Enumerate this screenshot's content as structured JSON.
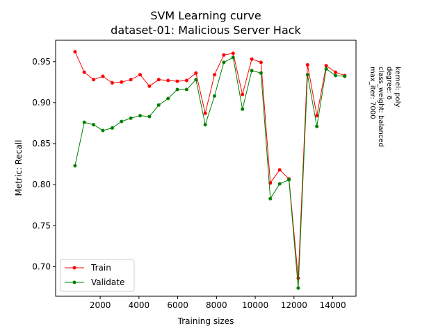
{
  "chart_data": {
    "type": "line",
    "title": "SVM Learning curve",
    "subtitle": "dataset-01: Malicious Server Hack",
    "xlabel": "Training sizes",
    "ylabel": "Metric: Recall",
    "xlim": [
      -300,
      15200
    ],
    "ylim": [
      0.664,
      0.976
    ],
    "xticks": [
      2000,
      4000,
      6000,
      8000,
      10000,
      12000,
      14000
    ],
    "xtick_labels": [
      "2000",
      "4000",
      "6000",
      "8000",
      "10000",
      "12000",
      "14000"
    ],
    "yticks": [
      0.7,
      0.75,
      0.8,
      0.85,
      0.9,
      0.95
    ],
    "ytick_labels": [
      "0.70",
      "0.75",
      "0.80",
      "0.85",
      "0.90",
      "0.95"
    ],
    "grid": false,
    "legend_position": "lower-left",
    "x": [
      700,
      1180,
      1660,
      2140,
      2620,
      3100,
      3580,
      4060,
      4540,
      5020,
      5500,
      5980,
      6460,
      6940,
      7420,
      7900,
      8380,
      8860,
      9340,
      9820,
      10300,
      10780,
      11260,
      11740,
      12220,
      12700,
      13180,
      13660,
      14140,
      14620
    ],
    "series": [
      {
        "name": "Train",
        "color": "#ff0000",
        "values": [
          0.962,
          0.937,
          0.928,
          0.932,
          0.924,
          0.925,
          0.928,
          0.934,
          0.92,
          0.928,
          0.927,
          0.926,
          0.927,
          0.936,
          0.887,
          0.934,
          0.958,
          0.96,
          0.91,
          0.953,
          0.949,
          0.802,
          0.818,
          0.807,
          0.686,
          0.946,
          0.884,
          0.945,
          0.937,
          0.933
        ]
      },
      {
        "name": "Validate",
        "color": "#008000",
        "values": [
          0.823,
          0.876,
          0.873,
          0.866,
          0.869,
          0.877,
          0.881,
          0.884,
          0.883,
          0.897,
          0.905,
          0.916,
          0.916,
          0.928,
          0.873,
          0.908,
          0.949,
          0.955,
          0.892,
          0.939,
          0.936,
          0.783,
          0.801,
          0.806,
          0.674,
          0.934,
          0.871,
          0.941,
          0.933,
          0.932
        ]
      }
    ],
    "annotations": [
      "kernel: poly",
      "degree: 6",
      "class_weight: balanced",
      "max_iter: 7000"
    ]
  }
}
